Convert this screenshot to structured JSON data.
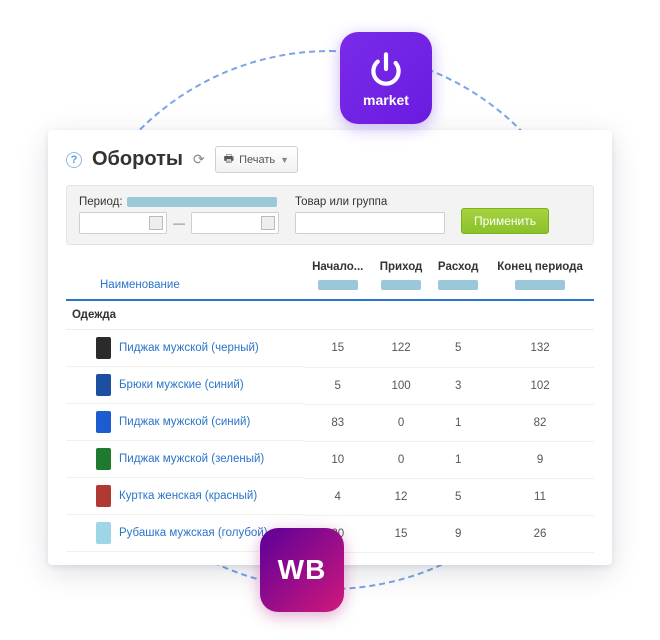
{
  "badges": {
    "umarket_label": "market",
    "wb_label": "WB",
    "umarket_bg": "#6a1be0",
    "wb_bg_from": "#5a009a",
    "wb_bg_to": "#d1187a"
  },
  "header": {
    "title": "Обороты",
    "print_label": "Печать"
  },
  "filters": {
    "period_label": "Период:",
    "product_label": "Товар или группа",
    "apply_label": "Применить"
  },
  "table": {
    "columns": {
      "name": "Наименование",
      "start": "Начало...",
      "in": "Приход",
      "out": "Расход",
      "end": "Конец периода"
    },
    "group_label": "Одежда",
    "rows": [
      {
        "label": "Пиджак мужской (черный)",
        "color": "#2b2b2b",
        "start": 15,
        "in": 122,
        "out": 5,
        "end": 132
      },
      {
        "label": "Брюки мужские (синий)",
        "color": "#1c4fa0",
        "start": 5,
        "in": 100,
        "out": 3,
        "end": 102
      },
      {
        "label": "Пиджак мужской (синий)",
        "color": "#1d5bd0",
        "start": 83,
        "in": 0,
        "out": 1,
        "end": 82
      },
      {
        "label": "Пиджак мужской (зеленый)",
        "color": "#1e7a2e",
        "start": 10,
        "in": 0,
        "out": 1,
        "end": 9
      },
      {
        "label": "Куртка женская (красный)",
        "color": "#b03a32",
        "start": 4,
        "in": 12,
        "out": 5,
        "end": 11
      },
      {
        "label": "Рубашка мужская (голубой)",
        "color": "#9fd6e7",
        "start": 20,
        "in": 15,
        "out": 9,
        "end": 26
      }
    ],
    "skeleton_color": "#9bc8d9"
  },
  "styling": {
    "circle_border": "#7aa5e6",
    "panel_shadow": "rgba(40,50,80,0.15)",
    "link_color": "#2a74c9",
    "header_underline": "#2a74c9",
    "apply_btn_bg": "#8bc22b",
    "filter_bg": "#f3f3f3"
  }
}
